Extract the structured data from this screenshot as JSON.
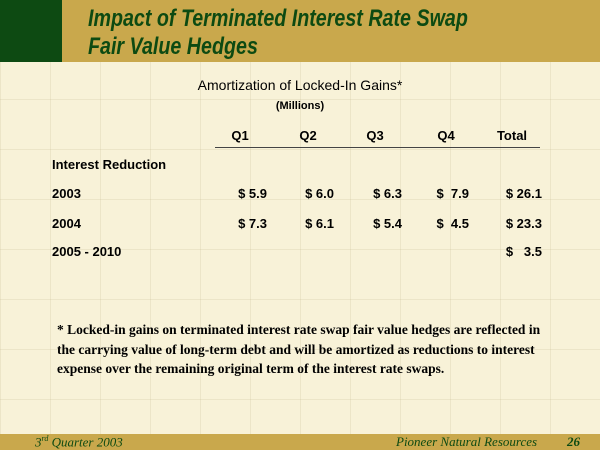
{
  "header": {
    "title_line1": "Impact of Terminated Interest Rate Swap",
    "title_line2": "Fair Value Hedges"
  },
  "table": {
    "title": "Amortization of Locked-In Gains*",
    "unit": "(Millions)",
    "columns": [
      "Q1",
      "Q2",
      "Q3",
      "Q4",
      "Total"
    ],
    "section": "Interest Reduction",
    "rows": [
      {
        "label": "2003",
        "cells": [
          "$ 5.9",
          "$ 6.0",
          "$ 6.3",
          "$  7.9",
          "$ 26.1"
        ]
      },
      {
        "label": "2004",
        "cells": [
          "$ 7.3",
          "$ 6.1",
          "$ 5.4",
          "$  4.5",
          "$ 23.3"
        ]
      },
      {
        "label": "2005 - 2010",
        "cells": [
          null,
          null,
          null,
          null,
          "$   3.5"
        ]
      }
    ]
  },
  "footnote": "* Locked-in gains on terminated interest rate swap fair value hedges are reflected  in  the carrying value of long-term debt and will be amortized as reductions to interest expense over the remaining original term of the interest rate swaps.",
  "footer": {
    "left": {
      "number": "3",
      "suffix": "rd",
      "rest": "Quarter 2003"
    },
    "company": "Pioneer Natural Resources",
    "page": "26"
  }
}
